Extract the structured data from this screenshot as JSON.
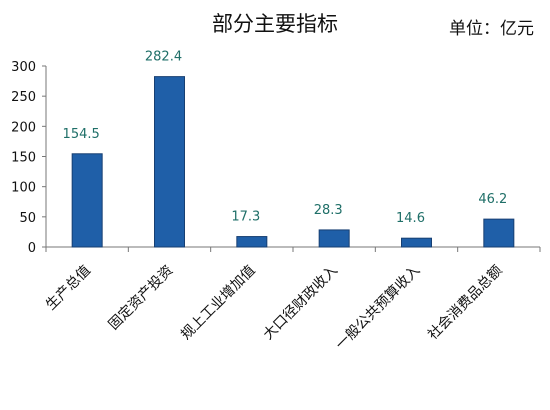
{
  "chart_data": {
    "type": "bar",
    "title": "部分主要指标",
    "unit": "单位：亿元",
    "categories": [
      "生产总值",
      "固定资产投资",
      "规上工业增加值",
      "大口径财政收入",
      "一般公共预算收入",
      "社会消费品总额"
    ],
    "values": [
      154.5,
      282.4,
      17.3,
      28.3,
      14.6,
      46.2
    ],
    "data_labels": [
      "154.5",
      "282.4",
      "17.3",
      "28.3",
      "14.6",
      "46.2"
    ],
    "ylim": [
      0,
      300
    ],
    "yticks": [
      0,
      50,
      100,
      150,
      200,
      250,
      300
    ],
    "grid": false,
    "legend": "none",
    "bar_color": "#1f5fa8",
    "label_color": "#1f6f68"
  }
}
